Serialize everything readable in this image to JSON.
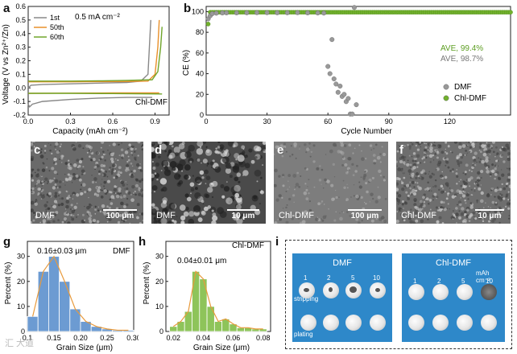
{
  "panels": {
    "a": "a",
    "b": "b",
    "c": "c",
    "d": "d",
    "e": "e",
    "f": "f",
    "g": "g",
    "h": "h",
    "i": "i"
  },
  "chart_data": [
    {
      "id": "a",
      "type": "line",
      "xlabel": "Capacity (mAh cm⁻²)",
      "ylabel": "Voltage (V vs Zn²⁺/Zn)",
      "xlim": [
        0.0,
        1.0
      ],
      "ylim": [
        -0.2,
        0.6
      ],
      "xticks": [
        "0.0",
        "0.3",
        "0.6",
        "0.9"
      ],
      "yticks": [
        "-0.2",
        "-0.1",
        "0.0",
        "0.1",
        "0.2",
        "0.3",
        "0.4",
        "0.5",
        "0.6"
      ],
      "annotation": "0.5 mA cm⁻²",
      "sample_label": "Chl-DMF",
      "series": [
        {
          "name": "1st",
          "color": "#888888",
          "charge": {
            "x": [
              0.0,
              0.02,
              0.1,
              0.3,
              0.5,
              0.7,
              0.8,
              0.85,
              0.86,
              0.87
            ],
            "y": [
              0.0,
              0.02,
              0.025,
              0.03,
              0.035,
              0.04,
              0.05,
              0.1,
              0.3,
              0.5
            ]
          },
          "discharge": {
            "x": [
              0.0,
              0.01,
              0.03,
              0.1,
              0.3,
              0.5,
              0.7,
              0.88
            ],
            "y": [
              -0.12,
              -0.14,
              -0.12,
              -0.1,
              -0.085,
              -0.075,
              -0.07,
              -0.07
            ]
          }
        },
        {
          "name": "50th",
          "color": "#e8902a",
          "charge": {
            "x": [
              0.0,
              0.1,
              0.3,
              0.5,
              0.7,
              0.85,
              0.9,
              0.92,
              0.93
            ],
            "y": [
              0.045,
              0.045,
              0.045,
              0.046,
              0.047,
              0.05,
              0.1,
              0.3,
              0.5
            ]
          },
          "discharge": {
            "x": [
              0.0,
              0.3,
              0.6,
              0.93
            ],
            "y": [
              -0.04,
              -0.038,
              -0.037,
              -0.037
            ]
          }
        },
        {
          "name": "60th",
          "color": "#6fa52a",
          "charge": {
            "x": [
              0.0,
              0.1,
              0.3,
              0.5,
              0.7,
              0.88,
              0.92,
              0.94,
              0.95
            ],
            "y": [
              0.05,
              0.05,
              0.05,
              0.052,
              0.055,
              0.06,
              0.12,
              0.3,
              0.45
            ]
          },
          "discharge": {
            "x": [
              0.0,
              0.3,
              0.6,
              0.95
            ],
            "y": [
              -0.04,
              -0.04,
              -0.042,
              -0.045
            ]
          }
        }
      ]
    },
    {
      "id": "b",
      "type": "scatter",
      "xlabel": "Cycle Number",
      "ylabel": "CE (%)",
      "xlim": [
        0,
        150
      ],
      "ylim": [
        0,
        105
      ],
      "xticks": [
        "0",
        "30",
        "60",
        "90",
        "120"
      ],
      "yticks": [
        "0",
        "20",
        "40",
        "60",
        "80",
        "100"
      ],
      "ave_chl": "AVE, 99.4%",
      "ave_dmf": "AVE, 98.7%",
      "series": [
        {
          "name": "DMF",
          "color": "#999999",
          "x": [
            1,
            2,
            3,
            5,
            8,
            10,
            15,
            20,
            25,
            30,
            35,
            40,
            45,
            50,
            55,
            58,
            60,
            61,
            62,
            63,
            64,
            65,
            66,
            67,
            68,
            69,
            70,
            71,
            72,
            73,
            74
          ],
          "y": [
            93,
            96,
            98,
            98.5,
            98.7,
            98.8,
            98.8,
            98.9,
            99,
            99,
            98.9,
            98.9,
            99,
            98.8,
            98.7,
            98.6,
            47,
            40,
            73,
            35,
            30,
            22,
            28,
            18,
            20,
            13,
            16,
            1,
            1,
            104,
            10
          ]
        },
        {
          "name": "Chl-DMF",
          "color": "#72b12d",
          "x_range": [
            1,
            150
          ],
          "x_step": 1,
          "y_value": 99.4,
          "y_first": 88
        }
      ]
    },
    {
      "id": "g",
      "type": "bar",
      "xlabel": "Grain Size (μm)",
      "ylabel": "Percent (%)",
      "xlim": [
        0.1,
        0.3
      ],
      "ylim": [
        0,
        36
      ],
      "xticks": [
        "0.1",
        "0.15",
        "0.20",
        "0.25",
        "0.30"
      ],
      "yticks": [
        "0",
        "10",
        "20",
        "30"
      ],
      "annotation": "0.16±0.03 μm",
      "sample_label": "DMF",
      "bar_color": "#6c9bd2",
      "bin_centers": [
        0.11,
        0.13,
        0.15,
        0.17,
        0.19,
        0.21,
        0.23,
        0.25,
        0.27,
        0.29
      ],
      "values": [
        6,
        24,
        30,
        20,
        9,
        4,
        2,
        1,
        0.5,
        0.5
      ],
      "fit_color": "#e89a3c"
    },
    {
      "id": "h",
      "type": "bar",
      "xlabel": "Grain Size (μm)",
      "ylabel": "Percent (%)",
      "xlim": [
        0.015,
        0.085
      ],
      "ylim": [
        0,
        36
      ],
      "xticks": [
        "0.02",
        "0.04",
        "0.06",
        "0.08"
      ],
      "yticks": [
        "0",
        "10",
        "20",
        "30"
      ],
      "annotation": "0.04±0.01 μm",
      "sample_label": "Chl-DMF",
      "bar_color": "#8ec45a",
      "bin_centers": [
        0.02,
        0.025,
        0.03,
        0.035,
        0.04,
        0.045,
        0.05,
        0.055,
        0.06,
        0.065,
        0.07,
        0.075,
        0.08
      ],
      "values": [
        2,
        4,
        8,
        24,
        21,
        10,
        4,
        5,
        3,
        1.5,
        1.5,
        1,
        1
      ],
      "fit_color": "#e89a3c"
    }
  ],
  "sem": {
    "c": {
      "label": "DMF",
      "scale": "100 μm"
    },
    "d": {
      "label": "DMF",
      "scale": "10 μm"
    },
    "e": {
      "label": "Chl-DMF",
      "scale": "100 μm"
    },
    "f": {
      "label": "Chl-DMF",
      "scale": "10 μm"
    }
  },
  "photos": {
    "dmf_title": "DMF",
    "chl_title": "Chl-DMF",
    "unit": "mAh cm⁻²",
    "counts": [
      "1",
      "2",
      "5",
      "10"
    ],
    "row_stripping": "stripping",
    "row_plating": "plating"
  },
  "watermark": "汇 大道"
}
